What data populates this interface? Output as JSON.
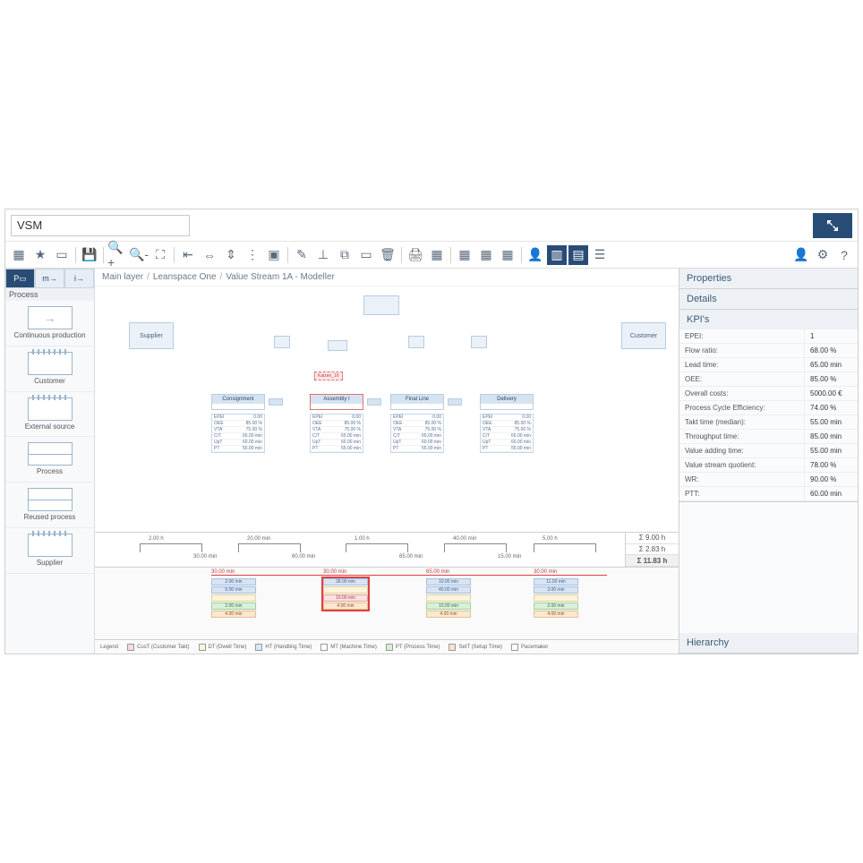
{
  "title": "VSM",
  "breadcrumb": [
    "Main layer",
    "Leanspace One",
    "Value Stream 1A - Modeller"
  ],
  "sidebar": {
    "category": "Process",
    "items": [
      {
        "label": "Continuous production",
        "icon": "arrow"
      },
      {
        "label": "Customer",
        "icon": "factory"
      },
      {
        "label": "External source",
        "icon": "factory"
      },
      {
        "label": "Process",
        "icon": "split"
      },
      {
        "label": "Reused process",
        "icon": "split"
      },
      {
        "label": "Supplier",
        "icon": "factory"
      }
    ]
  },
  "diagram": {
    "supplier": "Supplier",
    "customer": "Customer",
    "processes": [
      "Consignment",
      "Assembly I",
      "Final Line",
      "Delivery"
    ],
    "kaizen": "Kaizen_16",
    "datacard_rows": [
      {
        "k": "EPEI",
        "v": "0.00"
      },
      {
        "k": "OEE",
        "v": "85.00 %"
      },
      {
        "k": "VTA",
        "v": "75.00 %"
      },
      {
        "k": "C/T",
        "v": "65.00 min"
      },
      {
        "k": "UpT",
        "v": "60.00 min"
      },
      {
        "k": "PT",
        "v": "55.00 min"
      }
    ]
  },
  "timeline": {
    "top": [
      "2.00 h",
      "20.00 min",
      "1.00 h",
      "40.00 min",
      "5.00 h"
    ],
    "bottom": [
      "30.00 min",
      "60.00 min",
      "65.00 min",
      "15.00 min"
    ],
    "sums": [
      "Σ 9.00 h",
      "Σ 2.83 h",
      "Σ 11.83 h"
    ]
  },
  "bars": [
    {
      "header": "30.00 min",
      "sel": false,
      "cells": [
        {
          "t": "2.00 min",
          "c": "blue"
        },
        {
          "t": "9.00 min",
          "c": "blue"
        },
        {
          "t": "",
          "c": "yellow"
        },
        {
          "t": "2.00 min",
          "c": "green"
        },
        {
          "t": "4.00 min",
          "c": "orange"
        }
      ]
    },
    {
      "header": "30.00 min",
      "sel": true,
      "cells": [
        {
          "t": "28.00 min",
          "c": "blue"
        },
        {
          "t": "",
          "c": "yellow"
        },
        {
          "t": "10.00 min",
          "c": "red"
        },
        {
          "t": "4.00 min",
          "c": "orange"
        }
      ]
    },
    {
      "header": "65.00 min",
      "sel": false,
      "cells": [
        {
          "t": "10.00 min",
          "c": "blue"
        },
        {
          "t": "40.00 min",
          "c": "blue"
        },
        {
          "t": "",
          "c": "yellow"
        },
        {
          "t": "10.00 min",
          "c": "green"
        },
        {
          "t": "4.00 min",
          "c": "orange"
        }
      ]
    },
    {
      "header": "30.00 min",
      "sel": false,
      "cells": [
        {
          "t": "11.00 min",
          "c": "blue"
        },
        {
          "t": "3.00 min",
          "c": "blue"
        },
        {
          "t": "",
          "c": "yellow"
        },
        {
          "t": "2.00 min",
          "c": "green"
        },
        {
          "t": "4.00 min",
          "c": "orange"
        }
      ]
    }
  ],
  "legend": [
    {
      "label": "CusT (Customer Takt)",
      "c": "#f8d8d8"
    },
    {
      "label": "DT (Dwell Time)",
      "c": "#f8f4d8"
    },
    {
      "label": "HT (Handling Time)",
      "c": "#d8e8f8"
    },
    {
      "label": "MT (Machine Time)",
      "c": "#ffffff"
    },
    {
      "label": "PT (Process Time)",
      "c": "#d8f0d8"
    },
    {
      "label": "SetT (Setup Time)",
      "c": "#f8e4d0"
    },
    {
      "label": "Pacemaker",
      "c": "#ffffff"
    }
  ],
  "panel": {
    "sections": [
      "Properties",
      "Details",
      "KPI's",
      "Hierarchy"
    ],
    "kpis": [
      {
        "k": "EPEI:",
        "v": "1"
      },
      {
        "k": "Flow ratio:",
        "v": "68.00 %"
      },
      {
        "k": "Lead time:",
        "v": "65.00 min"
      },
      {
        "k": "OEE:",
        "v": "85.00 %"
      },
      {
        "k": "Overall costs:",
        "v": "5000.00 €"
      },
      {
        "k": "Process Cycle Efficiency:",
        "v": "74.00 %"
      },
      {
        "k": "Takt time (median):",
        "v": "55.00 min"
      },
      {
        "k": "Throughput time:",
        "v": "85.00 min"
      },
      {
        "k": "Value adding time:",
        "v": "55.00 min"
      },
      {
        "k": "Value stream quotient:",
        "v": "78.00 %"
      },
      {
        "k": "WR:",
        "v": "90.00 %"
      },
      {
        "k": "PTT:",
        "v": "60.00 min"
      }
    ]
  },
  "legend_title": "Legend"
}
